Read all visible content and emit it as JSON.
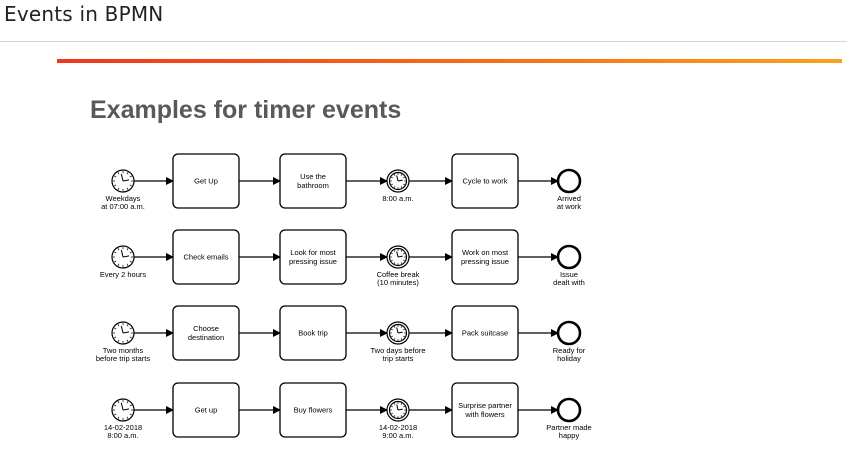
{
  "header": {
    "title": "Events in BPMN"
  },
  "slide": {
    "heading": "Examples for timer events"
  },
  "diagram": {
    "rows": [
      {
        "start_label": [
          "Weekdays",
          "at 07:00 a.m."
        ],
        "task1": [
          "Get Up"
        ],
        "task2": [
          "Use the",
          "bathroom"
        ],
        "timer_label": [
          "8:00 a.m."
        ],
        "task3": [
          "Cycle to work"
        ],
        "end_label": [
          "Arrived",
          "at work"
        ]
      },
      {
        "start_label": [
          "Every 2 hours"
        ],
        "task1": [
          "Check emails"
        ],
        "task2": [
          "Look for most",
          "pressing issue"
        ],
        "timer_label": [
          "Coffee break",
          "(10 minutes)"
        ],
        "task3": [
          "Work on most",
          "pressing issue"
        ],
        "end_label": [
          "Issue",
          "dealt with"
        ]
      },
      {
        "start_label": [
          "Two months",
          "before trip starts"
        ],
        "task1": [
          "Choose",
          "destination"
        ],
        "task2": [
          "Book trip"
        ],
        "timer_label": [
          "Two days before",
          "trip starts"
        ],
        "task3": [
          "Pack suitcase"
        ],
        "end_label": [
          "Ready for",
          "holiday"
        ]
      },
      {
        "start_label": [
          "14-02-2018",
          "8:00 a.m."
        ],
        "task1": [
          "Get up"
        ],
        "task2": [
          "Buy flowers"
        ],
        "timer_label": [
          "14-02-2018",
          "9:00 a.m."
        ],
        "task3": [
          "Surprise partner",
          "with flowers"
        ],
        "end_label": [
          "Partner made",
          "happy"
        ]
      }
    ]
  }
}
